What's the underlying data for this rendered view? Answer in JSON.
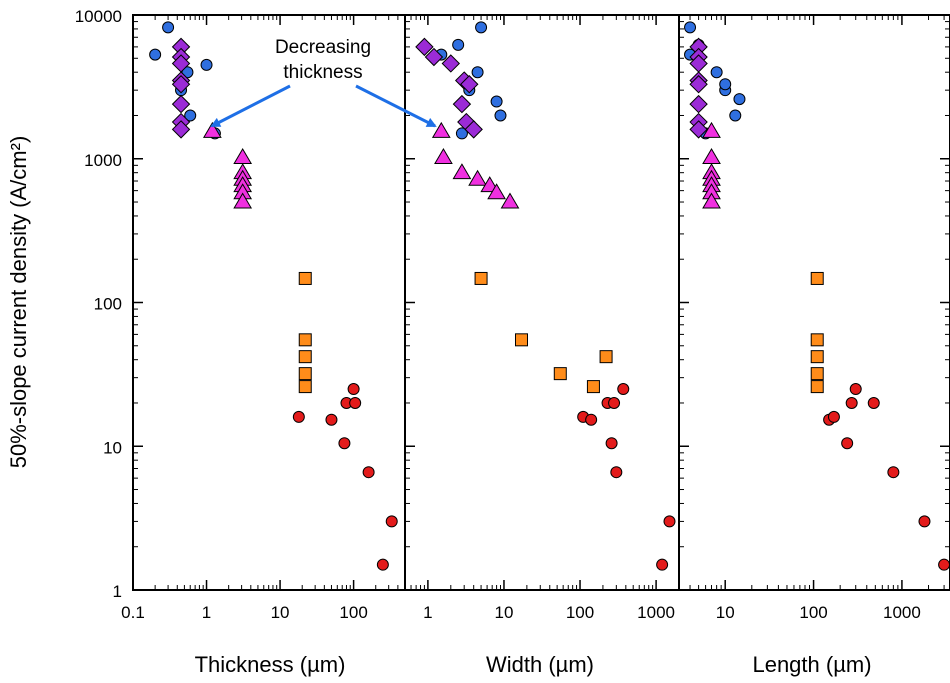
{
  "y_axis_label": "50%-slope current density (A/cm²)",
  "annotation": {
    "line1": "Decreasing",
    "line2": "thickness"
  },
  "colors": {
    "circle_blue": "#2f6fe0",
    "diamond_purple": "#9b2bd6",
    "triangle_magenta": "#f030e0",
    "square_orange": "#ff8c1a",
    "circle_red": "#e31b1b",
    "arrow_blue": "#1e6fe6"
  },
  "chart_data": {
    "type": "scatter",
    "yscale": "log",
    "xscale": "log",
    "ylim": [
      1,
      10000
    ],
    "y_ticks": [
      "1",
      "10",
      "100",
      "1000",
      "10000"
    ],
    "legend": "none",
    "grid": false,
    "panels": [
      {
        "id": "thickness",
        "xlabel": "Thickness (µm)",
        "xlim": [
          0.1,
          500
        ],
        "x_ticks": [
          "0.1",
          "1",
          "10",
          "100"
        ],
        "series": [
          {
            "marker": "circle",
            "color": "#2f6fe0",
            "points": [
              [
                0.2,
                5300
              ],
              [
                0.3,
                8200
              ],
              [
                0.45,
                3000
              ],
              [
                0.55,
                4000
              ],
              [
                0.6,
                2000
              ],
              [
                1.0,
                4500
              ],
              [
                1.3,
                1500
              ]
            ]
          },
          {
            "marker": "diamond",
            "color": "#9b2bd6",
            "points": [
              [
                0.45,
                6000
              ],
              [
                0.45,
                5100
              ],
              [
                0.45,
                4600
              ],
              [
                0.45,
                3500
              ],
              [
                0.45,
                3300
              ],
              [
                0.45,
                2400
              ],
              [
                0.45,
                1800
              ],
              [
                0.45,
                1600
              ]
            ]
          },
          {
            "marker": "triangle",
            "color": "#f030e0",
            "points": [
              [
                1.2,
                1550
              ],
              [
                3.1,
                1020
              ],
              [
                3.1,
                800
              ],
              [
                3.1,
                720
              ],
              [
                3.1,
                650
              ],
              [
                3.1,
                580
              ],
              [
                3.1,
                500
              ]
            ]
          },
          {
            "marker": "square",
            "color": "#ff8c1a",
            "points": [
              [
                22,
                147
              ],
              [
                22,
                55
              ],
              [
                22,
                42
              ],
              [
                22,
                32
              ],
              [
                22,
                26
              ]
            ]
          },
          {
            "marker": "circle",
            "color": "#e31b1b",
            "points": [
              [
                18,
                16
              ],
              [
                50,
                15.3
              ],
              [
                75,
                10.5
              ],
              [
                80,
                20
              ],
              [
                100,
                25
              ],
              [
                105,
                20
              ],
              [
                160,
                6.6
              ],
              [
                250,
                1.5
              ],
              [
                330,
                3.0
              ]
            ]
          }
        ]
      },
      {
        "id": "width",
        "xlabel": "Width (µm)",
        "xlim": [
          0.5,
          2000
        ],
        "x_ticks": [
          "1",
          "10",
          "100",
          "1000"
        ],
        "series": [
          {
            "marker": "circle",
            "color": "#2f6fe0",
            "points": [
              [
                1.5,
                5300
              ],
              [
                2.5,
                6200
              ],
              [
                3.5,
                3000
              ],
              [
                4.5,
                4000
              ],
              [
                5.0,
                8200
              ],
              [
                8.0,
                2500
              ],
              [
                9.0,
                2000
              ],
              [
                2.8,
                1500
              ]
            ]
          },
          {
            "marker": "diamond",
            "color": "#9b2bd6",
            "points": [
              [
                0.9,
                6000
              ],
              [
                1.2,
                5100
              ],
              [
                2.0,
                4600
              ],
              [
                3.0,
                3500
              ],
              [
                3.5,
                3300
              ],
              [
                2.8,
                2400
              ],
              [
                3.2,
                1800
              ],
              [
                4.0,
                1600
              ]
            ]
          },
          {
            "marker": "triangle",
            "color": "#f030e0",
            "points": [
              [
                1.5,
                1550
              ],
              [
                1.6,
                1020
              ],
              [
                2.8,
                800
              ],
              [
                4.5,
                720
              ],
              [
                6.5,
                650
              ],
              [
                8.0,
                580
              ],
              [
                12,
                500
              ]
            ]
          },
          {
            "marker": "square",
            "color": "#ff8c1a",
            "points": [
              [
                5.0,
                147
              ],
              [
                17,
                55
              ],
              [
                220,
                42
              ],
              [
                55,
                32
              ],
              [
                150,
                26
              ]
            ]
          },
          {
            "marker": "circle",
            "color": "#e31b1b",
            "points": [
              [
                110,
                16
              ],
              [
                140,
                15.3
              ],
              [
                260,
                10.5
              ],
              [
                230,
                20
              ],
              [
                370,
                25
              ],
              [
                280,
                20
              ],
              [
                300,
                6.6
              ],
              [
                1200,
                1.5
              ],
              [
                1500,
                3.0
              ]
            ]
          }
        ]
      },
      {
        "id": "length",
        "xlabel": "Length (µm)",
        "xlim": [
          3,
          3500
        ],
        "x_ticks": [
          "10",
          "100",
          "1000"
        ],
        "series": [
          {
            "marker": "circle",
            "color": "#2f6fe0",
            "points": [
              [
                4.0,
                8200
              ],
              [
                4.0,
                5300
              ],
              [
                5.0,
                6200
              ],
              [
                8.0,
                4000
              ],
              [
                10,
                3000
              ],
              [
                10,
                3300
              ],
              [
                13,
                2000
              ],
              [
                14.5,
                2600
              ],
              [
                6.0,
                1500
              ]
            ]
          },
          {
            "marker": "diamond",
            "color": "#9b2bd6",
            "points": [
              [
                5.0,
                6000
              ],
              [
                5.0,
                5100
              ],
              [
                5.0,
                4600
              ],
              [
                5.0,
                3500
              ],
              [
                5.0,
                3300
              ],
              [
                5.0,
                2400
              ],
              [
                5.0,
                1800
              ],
              [
                5.0,
                1600
              ]
            ]
          },
          {
            "marker": "triangle",
            "color": "#f030e0",
            "points": [
              [
                7.0,
                1550
              ],
              [
                7.0,
                1020
              ],
              [
                7.0,
                800
              ],
              [
                7.0,
                720
              ],
              [
                7.0,
                650
              ],
              [
                7.0,
                580
              ],
              [
                7.0,
                500
              ]
            ]
          },
          {
            "marker": "square",
            "color": "#ff8c1a",
            "points": [
              [
                110,
                147
              ],
              [
                110,
                55
              ],
              [
                110,
                42
              ],
              [
                110,
                32
              ],
              [
                110,
                26
              ]
            ]
          },
          {
            "marker": "circle",
            "color": "#e31b1b",
            "points": [
              [
                150,
                15.3
              ],
              [
                170,
                16
              ],
              [
                240,
                10.5
              ],
              [
                270,
                20
              ],
              [
                300,
                25
              ],
              [
                480,
                20
              ],
              [
                800,
                6.6
              ],
              [
                1800,
                3.0
              ],
              [
                3000,
                1.5
              ]
            ]
          }
        ]
      }
    ]
  }
}
